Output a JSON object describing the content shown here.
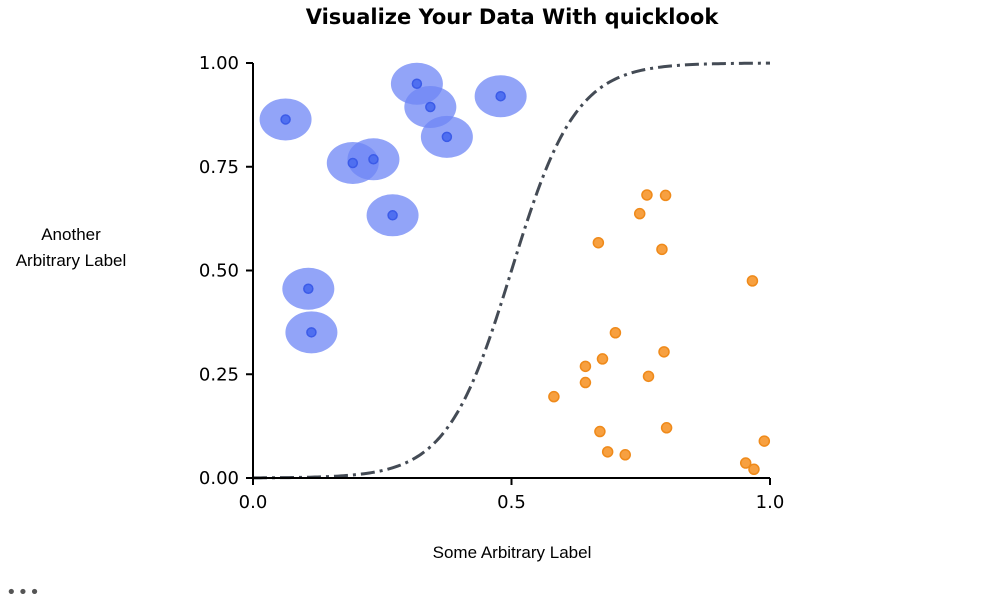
{
  "chart_data": {
    "type": "scatter",
    "title": "Visualize Your Data With quicklook",
    "xlabel": "Some Arbitrary Label",
    "ylabel_lines": [
      "Another",
      "Arbitrary Label"
    ],
    "xlim": [
      0.0,
      1.0
    ],
    "ylim": [
      0.0,
      1.0
    ],
    "xticks": [
      "0.0",
      "0.5",
      "1.0"
    ],
    "yticks": [
      "0.00",
      "0.25",
      "0.50",
      "0.75",
      "1.00"
    ],
    "grid": false,
    "colors": {
      "blue_point": "#4f6ff0",
      "blue_halo": "#6e86f5",
      "orange_point": "#f7a040",
      "orange_edge": "#ef8a1a",
      "curve": "#444b55"
    },
    "series": [
      {
        "marker": "circle-with-halo",
        "x": [
          0.063,
          0.113,
          0.107,
          0.193,
          0.233,
          0.27,
          0.317,
          0.343,
          0.375,
          0.479
        ],
        "y": [
          0.864,
          0.351,
          0.456,
          0.759,
          0.768,
          0.633,
          0.95,
          0.894,
          0.822,
          0.92
        ]
      },
      {
        "marker": "circle",
        "x": [
          0.582,
          0.643,
          0.643,
          0.668,
          0.671,
          0.676,
          0.686,
          0.701,
          0.72,
          0.748,
          0.762,
          0.765,
          0.791,
          0.795,
          0.798,
          0.8,
          0.953,
          0.966,
          0.969,
          0.989
        ],
        "y": [
          0.196,
          0.23,
          0.269,
          0.567,
          0.112,
          0.287,
          0.063,
          0.35,
          0.056,
          0.637,
          0.682,
          0.245,
          0.551,
          0.304,
          0.681,
          0.121,
          0.036,
          0.475,
          0.021,
          0.089
        ]
      },
      {
        "type": "line",
        "style": "dash-dot",
        "function": "sigmoid",
        "x": [
          0.0,
          0.1,
          0.2,
          0.3,
          0.4,
          0.5,
          0.6,
          0.7,
          0.8,
          0.9,
          1.0
        ],
        "y": [
          0.0,
          0.005,
          0.02,
          0.06,
          0.2,
          0.5,
          0.8,
          0.94,
          0.98,
          0.995,
          1.0
        ]
      }
    ]
  },
  "footer": {
    "more_indicator": "•••"
  }
}
